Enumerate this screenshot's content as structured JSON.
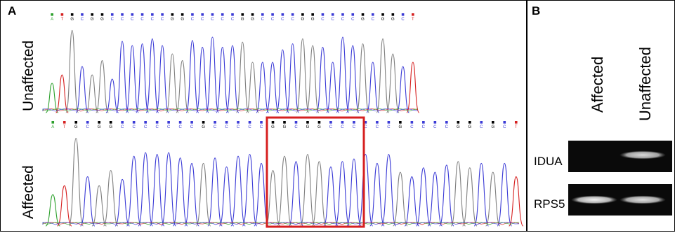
{
  "panel_a": {
    "letter": "A",
    "rows": [
      {
        "label": "Unaffected"
      },
      {
        "label": "Affected"
      }
    ],
    "highlight_color": "#d62020"
  },
  "panel_b": {
    "letter": "B",
    "columns": [
      "Affected",
      "Unaffected"
    ],
    "genes": [
      {
        "label": "IDUA",
        "bands": [
          0.03,
          0.85
        ]
      },
      {
        "label": "RPS5",
        "bands": [
          0.95,
          0.88
        ]
      }
    ]
  },
  "colors": {
    "A": "#2ca02c",
    "C": "#3b3bd6",
    "G": "#000000",
    "T": "#d62020",
    "gray_trace": "#808080"
  }
}
